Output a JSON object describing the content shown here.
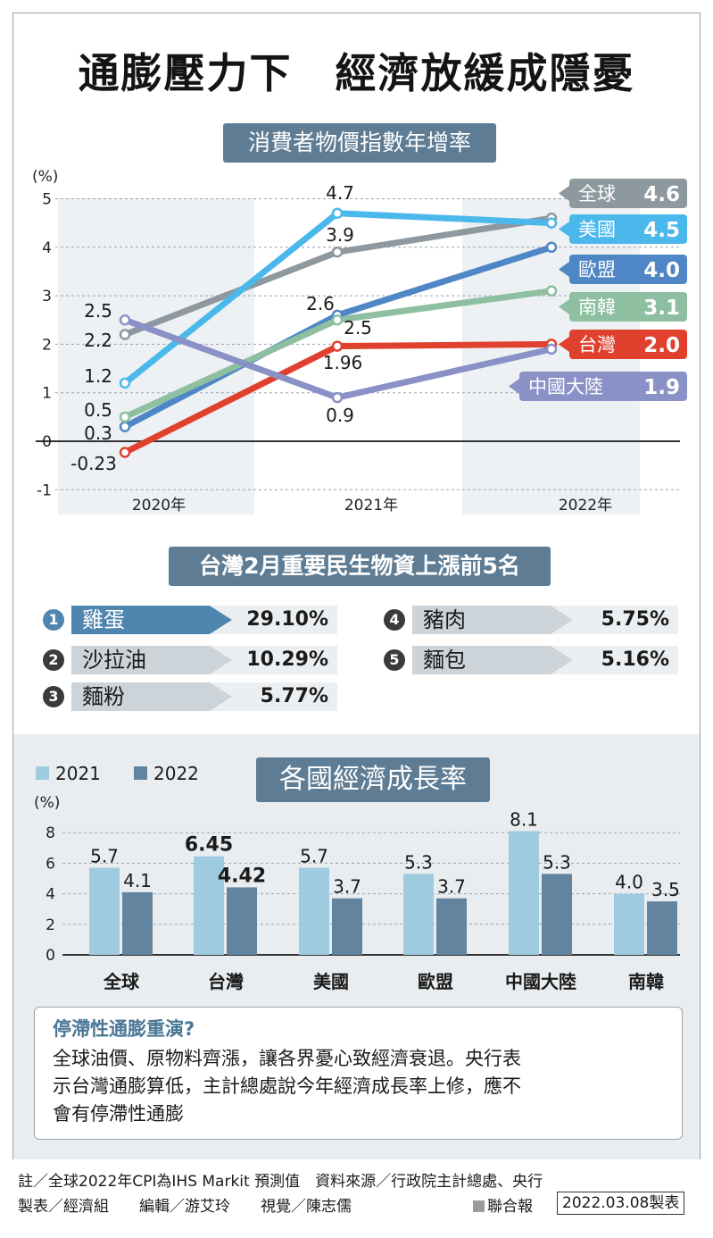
{
  "title": "通膨壓力下　經濟放緩成隱憂",
  "cpi_pill": "消費者物價指數年增率",
  "top5_pill": "台灣2月重要民生物資上漲前5名",
  "gdp_pill": "各國經濟成長率",
  "colors": {
    "global": "#8e989f",
    "us": "#4bb8ec",
    "eu": "#4f86c5",
    "korea": "#8dbfa0",
    "taiwan": "#e0412f",
    "china": "#8991c6",
    "bar2021": "#9fcbe0",
    "bar2022": "#62849e"
  },
  "chart_data": [
    {
      "type": "line",
      "title": "消費者物價指數年增率",
      "ylabel": "(%)",
      "ylim": [
        -1,
        5
      ],
      "yticks": [
        "-1",
        "0",
        "1",
        "2",
        "3",
        "4",
        "5"
      ],
      "categories": [
        "2020年",
        "2021年",
        "2022年"
      ],
      "series": [
        {
          "key": "global",
          "name": "全球",
          "values": [
            2.2,
            3.9,
            4.6
          ],
          "labels": [
            "2.2",
            "3.9",
            ""
          ],
          "end_label": "全球",
          "end_value": "4.6"
        },
        {
          "key": "us",
          "name": "美國",
          "values": [
            1.2,
            4.7,
            4.5
          ],
          "labels": [
            "1.2",
            "4.7",
            ""
          ],
          "end_label": "美國",
          "end_value": "4.5"
        },
        {
          "key": "eu",
          "name": "歐盟",
          "values": [
            0.3,
            2.6,
            4.0
          ],
          "labels": [
            "0.3",
            "2.6",
            ""
          ],
          "end_label": "歐盟",
          "end_value": "4.0"
        },
        {
          "key": "korea",
          "name": "南韓",
          "values": [
            0.5,
            2.5,
            3.1
          ],
          "labels": [
            "0.5",
            "2.5",
            ""
          ],
          "end_label": "南韓",
          "end_value": "3.1"
        },
        {
          "key": "taiwan",
          "name": "台灣",
          "values": [
            -0.23,
            1.96,
            2.0
          ],
          "labels": [
            "-0.23",
            "1.96",
            ""
          ],
          "end_label": "台灣",
          "end_value": "2.0"
        },
        {
          "key": "china",
          "name": "中國大陸",
          "values": [
            2.5,
            0.9,
            1.9
          ],
          "labels": [
            "2.5",
            "0.9",
            ""
          ],
          "end_label": "中國大陸",
          "end_value": "1.9"
        }
      ]
    },
    {
      "type": "bar",
      "title": "各國經濟成長率",
      "ylabel": "(%)",
      "ylim": [
        0,
        8
      ],
      "yticks": [
        "0",
        "2",
        "4",
        "6",
        "8"
      ],
      "categories": [
        "全球",
        "台灣",
        "美國",
        "歐盟",
        "中國大陸",
        "南韓"
      ],
      "series": [
        {
          "name": "2021",
          "values": [
            5.7,
            6.45,
            5.7,
            5.3,
            8.1,
            4.0
          ],
          "labels": [
            "5.7",
            "6.45",
            "5.7",
            "5.3",
            "8.1",
            "4.0"
          ]
        },
        {
          "name": "2022",
          "values": [
            4.1,
            4.42,
            3.7,
            3.7,
            5.3,
            3.5
          ],
          "labels": [
            "4.1",
            "4.42",
            "3.7",
            "3.7",
            "5.3",
            "3.5"
          ]
        }
      ]
    }
  ],
  "ranking": [
    {
      "rank": "1",
      "item": "雞蛋",
      "value": "29.10%"
    },
    {
      "rank": "2",
      "item": "沙拉油",
      "value": "10.29%"
    },
    {
      "rank": "3",
      "item": "麵粉",
      "value": "5.77%"
    },
    {
      "rank": "4",
      "item": "豬肉",
      "value": "5.75%"
    },
    {
      "rank": "5",
      "item": "麵包",
      "value": "5.16%"
    }
  ],
  "note": {
    "title": "停滯性通膨重演?",
    "lines": [
      "全球油價、原物料齊漲，讓各界憂心致經濟衰退。央行表",
      "示台灣通膨算低，主計總處說今年經濟成長率上修，應不",
      "會有停滯性通膨"
    ]
  },
  "footer": {
    "line1": "註／全球2022年CPI為IHS Markit 預測值　資料來源／行政院主計總處、央行",
    "credits": "製表／經濟組　　編輯／游艾玲　　視覺／陳志儒",
    "paper": "聯合報",
    "date": "2022.03.08製表"
  }
}
